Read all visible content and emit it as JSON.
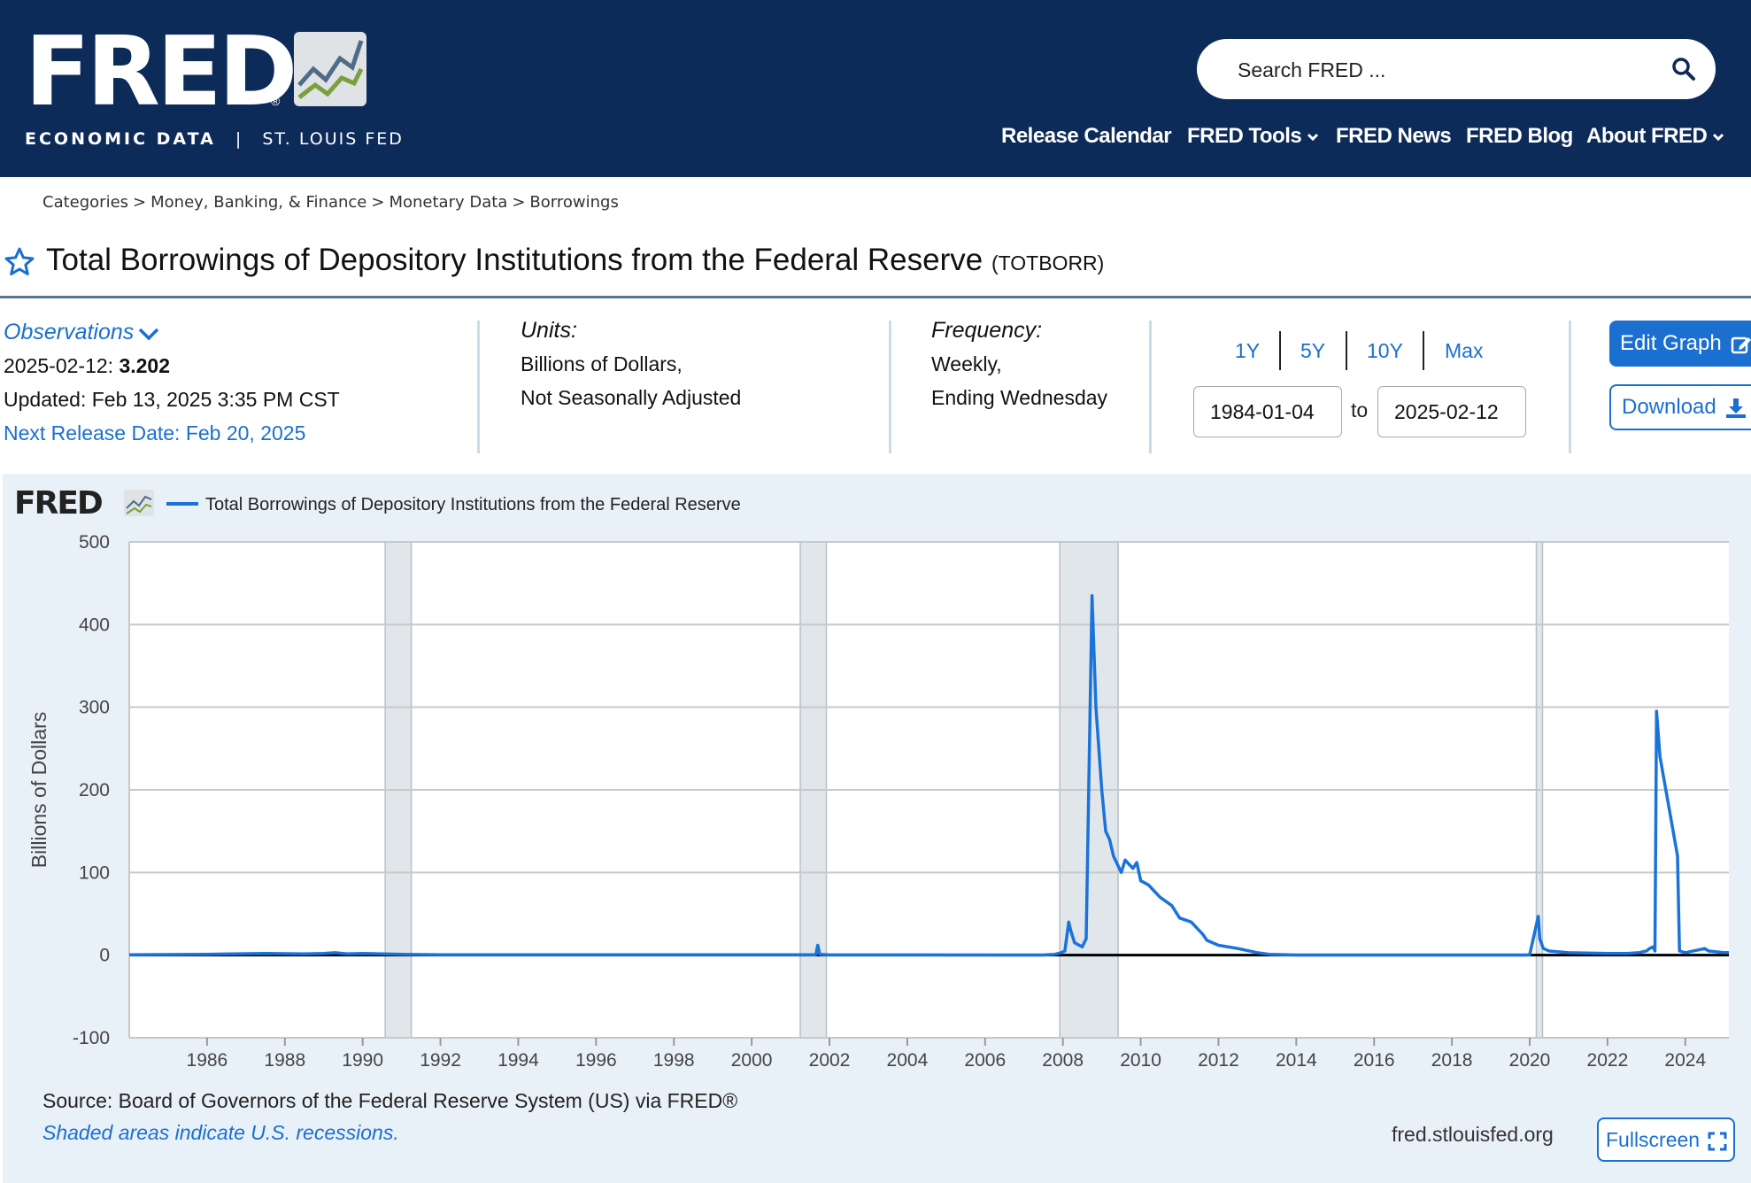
{
  "brand": {
    "logo_text": "FRED",
    "sub_bold": "ECONOMIC DATA",
    "sub_divider": "|",
    "sub_org": "ST. LOUIS FED"
  },
  "search": {
    "placeholder": "Search FRED ..."
  },
  "nav": [
    {
      "label": "Release Calendar"
    },
    {
      "label": "FRED Tools"
    },
    {
      "label": "FRED News"
    },
    {
      "label": "FRED Blog"
    },
    {
      "label": "About FRED"
    }
  ],
  "breadcrumb": [
    "Categories",
    "Money, Banking, & Finance",
    "Monetary Data",
    "Borrowings"
  ],
  "breadcrumb_sep": ">",
  "series": {
    "title": "Total Borrowings of Depository Institutions from the Federal Reserve",
    "code": "(TOTBORR)"
  },
  "observations": {
    "label": "Observations",
    "latest_date": "2025-02-12:",
    "latest_value": "3.202",
    "updated": "Updated: Feb 13, 2025 3:35 PM CST",
    "next_release": "Next Release Date: Feb 20, 2025"
  },
  "units": {
    "label": "Units:",
    "line1": "Billions of Dollars,",
    "line2": "Not Seasonally Adjusted"
  },
  "frequency": {
    "label": "Frequency:",
    "line1": "Weekly,",
    "line2": "Ending Wednesday"
  },
  "range": {
    "buttons": [
      "1Y",
      "5Y",
      "10Y",
      "Max"
    ],
    "start": "1984-01-04",
    "to": "to",
    "end": "2025-02-12"
  },
  "actions": {
    "edit": "Edit Graph",
    "download": "Download",
    "fullscreen": "Fullscreen"
  },
  "footer": {
    "source": "Source: Board of Governors of the Federal Reserve System (US) via FRED®",
    "shaded": "Shaded areas indicate U.S. recessions.",
    "site": "fred.stlouisfed.org"
  },
  "colors": {
    "header": "#0d2b59",
    "accent": "#1a6fd1",
    "line": "#1a73d9",
    "recession": "#e1e6eb",
    "panel": "#e9f1f8"
  },
  "chart_data": {
    "type": "line",
    "legend_logo": "FRED",
    "legend": "Total Borrowings of Depository Institutions from the Federal Reserve",
    "ylabel": "Billions of Dollars",
    "ylim": [
      -100,
      500
    ],
    "yticks": [
      -100,
      0,
      100,
      200,
      300,
      400,
      500
    ],
    "xlim": [
      1984.0,
      2025.12
    ],
    "xticks": [
      "1986",
      "1988",
      "1990",
      "1992",
      "1994",
      "1996",
      "1998",
      "2000",
      "2002",
      "2004",
      "2006",
      "2008",
      "2010",
      "2012",
      "2014",
      "2016",
      "2018",
      "2020",
      "2022",
      "2024"
    ],
    "recessions": [
      [
        1990.58,
        1991.25
      ],
      [
        2001.25,
        2001.92
      ],
      [
        2007.92,
        2009.42
      ],
      [
        2020.17,
        2020.33
      ]
    ],
    "series": [
      {
        "x": [
          1984.0,
          1986.0,
          1987.5,
          1988.5,
          1989.0,
          1989.3,
          1989.6,
          1990.0,
          1991.0,
          1992.0,
          2001.0,
          2001.65,
          2001.7,
          2001.75,
          2002.0,
          2007.5,
          2007.8,
          2007.95,
          2008.05,
          2008.15,
          2008.2,
          2008.3,
          2008.5,
          2008.6,
          2008.75,
          2008.85,
          2009.0,
          2009.1,
          2009.2,
          2009.3,
          2009.4,
          2009.5,
          2009.6,
          2009.7,
          2009.8,
          2009.9,
          2010.0,
          2010.2,
          2010.3,
          2010.5,
          2010.8,
          2011.0,
          2011.3,
          2011.6,
          2011.7,
          2012.0,
          2012.5,
          2013.0,
          2013.3,
          2014.0,
          2019.9,
          2020.0,
          2020.22,
          2020.26,
          2020.35,
          2020.5,
          2021.0,
          2022.0,
          2022.5,
          2022.8,
          2023.0,
          2023.08,
          2023.17,
          2023.22,
          2023.26,
          2023.35,
          2023.5,
          2023.65,
          2023.8,
          2023.85,
          2024.0,
          2024.5,
          2024.6,
          2025.0,
          2025.12
        ],
        "y": [
          0.5,
          1,
          2,
          1.5,
          2,
          3,
          1.5,
          2,
          1,
          0.5,
          0.5,
          0.5,
          12,
          1,
          0.3,
          0.2,
          1,
          3,
          5,
          40,
          30,
          15,
          10,
          20,
          435,
          300,
          200,
          150,
          140,
          120,
          110,
          100,
          115,
          110,
          105,
          112,
          90,
          85,
          80,
          70,
          60,
          45,
          40,
          25,
          18,
          12,
          8,
          3,
          1,
          0.2,
          0.2,
          0.5,
          47,
          20,
          8,
          5,
          3,
          2,
          2,
          3,
          5,
          8,
          10,
          5,
          295,
          240,
          200,
          160,
          120,
          5,
          3,
          8,
          5,
          3,
          3.2
        ]
      }
    ]
  }
}
